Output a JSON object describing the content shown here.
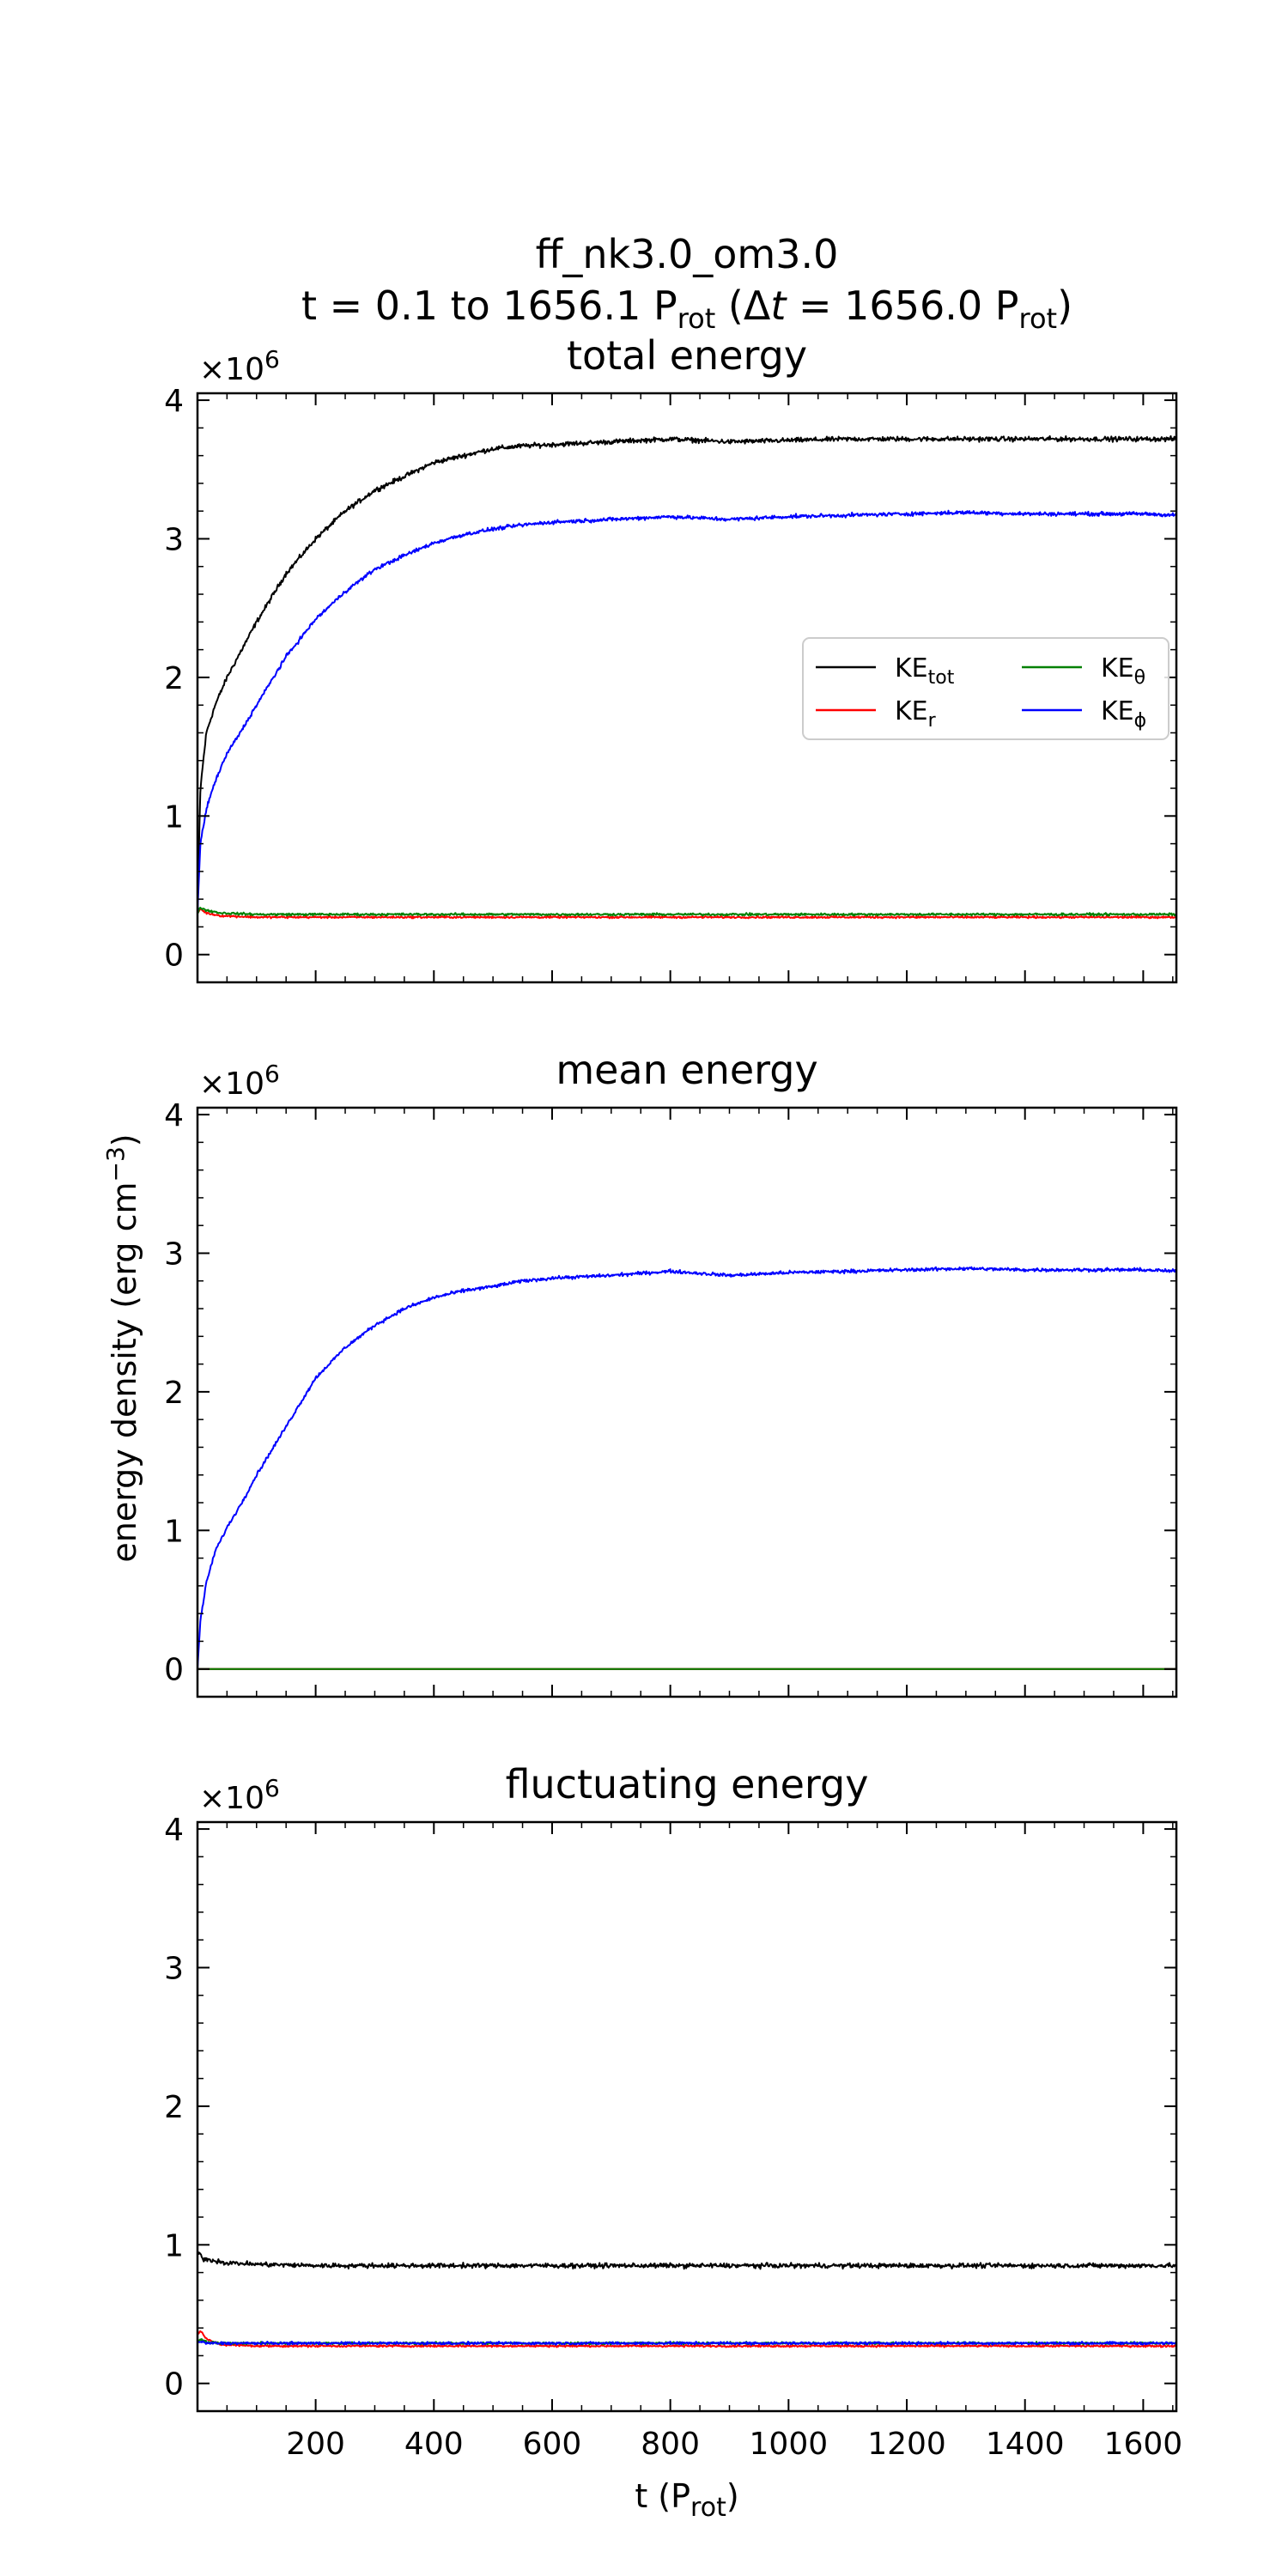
{
  "figure": {
    "title_line1": "ff_nk3.0_om3.0",
    "title_line2": "t = 0.1 to 1656.1 P",
    "title_rot1": "rot",
    "title_mid": " (Δ",
    "title_t": "t",
    "title_eq": " = 1656.0 P",
    "title_rot2": "rot",
    "title_end": ")",
    "ylabel": "energy density (erg cm",
    "ylabel_sup": "−3",
    "ylabel_end": ")",
    "xlabel": "t (P",
    "xlabel_sub": "rot",
    "xlabel_end": ")",
    "multiplier": "×10",
    "multiplier_exp": "6"
  },
  "legend": [
    {
      "key": "tot",
      "base": "KE",
      "sub": "tot",
      "color": "#000000"
    },
    {
      "key": "theta",
      "base": "KE",
      "sub": "θ",
      "color": "#008000"
    },
    {
      "key": "r",
      "base": "KE",
      "sub": "r",
      "color": "#ff0000"
    },
    {
      "key": "phi",
      "base": "KE",
      "sub": "ϕ",
      "color": "#0000ff"
    }
  ],
  "chart_data": [
    {
      "type": "line",
      "title": "total energy",
      "xlim": [
        0.1,
        1656.1
      ],
      "ylim": [
        -0.2,
        4.05
      ],
      "y_scale_exponent": 6,
      "xticks": [
        200,
        400,
        600,
        800,
        1000,
        1200,
        1400,
        1600
      ],
      "yticks": [
        0,
        1,
        2,
        3,
        4
      ],
      "legend_placement": "center-right",
      "series": [
        {
          "name": "KE_tot",
          "color": "#000000",
          "noise": 0.025,
          "x": [
            0.1,
            5,
            15,
            30,
            50,
            75,
            100,
            150,
            200,
            250,
            300,
            350,
            400,
            450,
            500,
            550,
            600,
            700,
            800,
            900,
            1000,
            1100,
            1200,
            1300,
            1400,
            1500,
            1600,
            1656.1
          ],
          "y": [
            0.3,
            1.2,
            1.6,
            1.8,
            2.0,
            2.2,
            2.4,
            2.75,
            3.0,
            3.2,
            3.35,
            3.45,
            3.55,
            3.6,
            3.65,
            3.67,
            3.68,
            3.7,
            3.72,
            3.7,
            3.71,
            3.72,
            3.72,
            3.72,
            3.72,
            3.72,
            3.72,
            3.72
          ]
        },
        {
          "name": "KE_r",
          "color": "#ff0000",
          "noise": 0.01,
          "x": [
            0.1,
            5,
            15,
            40,
            100,
            400,
            800,
            1200,
            1656.1
          ],
          "y": [
            0.3,
            0.33,
            0.3,
            0.28,
            0.27,
            0.27,
            0.27,
            0.27,
            0.27
          ]
        },
        {
          "name": "KE_θ",
          "color": "#008000",
          "noise": 0.012,
          "x": [
            0.1,
            5,
            15,
            40,
            100,
            400,
            800,
            1200,
            1656.1
          ],
          "y": [
            0.3,
            0.34,
            0.32,
            0.3,
            0.29,
            0.29,
            0.29,
            0.29,
            0.29
          ]
        },
        {
          "name": "KE_ϕ",
          "color": "#0000ff",
          "noise": 0.02,
          "x": [
            0.1,
            5,
            15,
            30,
            50,
            75,
            100,
            150,
            200,
            250,
            300,
            350,
            400,
            450,
            500,
            550,
            600,
            700,
            800,
            900,
            1000,
            1100,
            1200,
            1300,
            1400,
            1500,
            1600,
            1656.1
          ],
          "y": [
            0.3,
            0.8,
            1.05,
            1.25,
            1.45,
            1.62,
            1.8,
            2.15,
            2.42,
            2.62,
            2.78,
            2.88,
            2.97,
            3.03,
            3.07,
            3.1,
            3.12,
            3.14,
            3.16,
            3.14,
            3.16,
            3.17,
            3.18,
            3.19,
            3.18,
            3.18,
            3.18,
            3.17
          ]
        }
      ]
    },
    {
      "type": "line",
      "title": "mean energy",
      "xlim": [
        0.1,
        1656.1
      ],
      "ylim": [
        -0.2,
        4.05
      ],
      "y_scale_exponent": 6,
      "xticks": [
        200,
        400,
        600,
        800,
        1000,
        1200,
        1400,
        1600
      ],
      "yticks": [
        0,
        1,
        2,
        3,
        4
      ],
      "series": [
        {
          "name": "KE_tot",
          "color": "#000000",
          "noise": 0.0,
          "x": [
            0.1,
            1656.1
          ],
          "y": [
            0.0,
            0.0
          ]
        },
        {
          "name": "KE_r",
          "color": "#ff0000",
          "noise": 0.0,
          "x": [
            0.1,
            1656.1
          ],
          "y": [
            0.0,
            0.0
          ]
        },
        {
          "name": "KE_θ",
          "color": "#008000",
          "noise": 0.0,
          "x": [
            0.1,
            1656.1
          ],
          "y": [
            0.0,
            0.0
          ]
        },
        {
          "name": "KE_ϕ",
          "color": "#0000ff",
          "noise": 0.018,
          "x": [
            0.1,
            5,
            15,
            30,
            50,
            75,
            100,
            150,
            200,
            250,
            300,
            350,
            400,
            450,
            500,
            550,
            600,
            700,
            800,
            900,
            1000,
            1100,
            1200,
            1300,
            1400,
            1500,
            1600,
            1656.1
          ],
          "y": [
            0.0,
            0.35,
            0.62,
            0.85,
            1.02,
            1.2,
            1.4,
            1.75,
            2.1,
            2.32,
            2.48,
            2.6,
            2.68,
            2.73,
            2.76,
            2.8,
            2.82,
            2.84,
            2.87,
            2.84,
            2.86,
            2.87,
            2.88,
            2.89,
            2.88,
            2.88,
            2.88,
            2.87
          ]
        }
      ]
    },
    {
      "type": "line",
      "title": "fluctuating energy",
      "xlim": [
        0.1,
        1656.1
      ],
      "ylim": [
        -0.2,
        4.05
      ],
      "y_scale_exponent": 6,
      "xticks": [
        200,
        400,
        600,
        800,
        1000,
        1200,
        1400,
        1600
      ],
      "yticks": [
        0,
        1,
        2,
        3,
        4
      ],
      "series": [
        {
          "name": "KE_tot",
          "color": "#000000",
          "noise": 0.025,
          "x": [
            0.1,
            10,
            50,
            100,
            200,
            400,
            600,
            800,
            1000,
            1200,
            1400,
            1656.1
          ],
          "y": [
            0.95,
            0.9,
            0.87,
            0.86,
            0.85,
            0.85,
            0.85,
            0.85,
            0.85,
            0.85,
            0.85,
            0.85
          ]
        },
        {
          "name": "KE_r",
          "color": "#ff0000",
          "noise": 0.01,
          "x": [
            0.1,
            5,
            15,
            40,
            100,
            400,
            800,
            1200,
            1656.1
          ],
          "y": [
            0.35,
            0.38,
            0.32,
            0.28,
            0.27,
            0.27,
            0.27,
            0.27,
            0.27
          ]
        },
        {
          "name": "KE_θ",
          "color": "#008000",
          "noise": 0.012,
          "x": [
            0.1,
            5,
            15,
            40,
            100,
            400,
            800,
            1200,
            1656.1
          ],
          "y": [
            0.3,
            0.32,
            0.3,
            0.29,
            0.29,
            0.29,
            0.29,
            0.29,
            0.29
          ]
        },
        {
          "name": "KE_ϕ",
          "color": "#0000ff",
          "noise": 0.014,
          "x": [
            0.1,
            5,
            15,
            40,
            100,
            400,
            800,
            1200,
            1656.1
          ],
          "y": [
            0.3,
            0.3,
            0.29,
            0.29,
            0.29,
            0.29,
            0.29,
            0.29,
            0.29
          ]
        }
      ]
    }
  ]
}
